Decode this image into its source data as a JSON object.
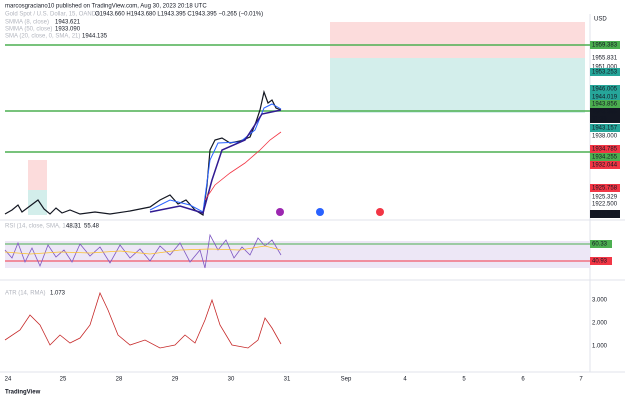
{
  "header": {
    "attribution": "marcosgraciano10 published on TradingView.com, Aug 30, 2023 20:18 UTC"
  },
  "legend": {
    "symbol": "Gold Spot / U.S. Dollar, 15, OANDA",
    "ohlc": "O1943.660 H1943.680 L1943.395 C1943.395 −0.265 (−0.01%)",
    "indicators": [
      {
        "name": "SMMA (8, close)",
        "value": "1943.621"
      },
      {
        "name": "SMMA (50, close)",
        "value": "1933.090"
      },
      {
        "name": "SMA (20, close, 0, SMA, 21)",
        "value": "1944.135"
      }
    ]
  },
  "price_axis": {
    "currency": "USD",
    "labels": [
      "1959.383",
      "1955.831",
      "1951.000",
      "1953.253",
      "1946.005",
      "1944.019",
      "1943.856",
      "1943.395",
      "11:30",
      "1943.157",
      "1938.000",
      "1934.785",
      "1934.255",
      "1932.044",
      "1925.758",
      "1925.329",
      "1922.500",
      "1918.614"
    ]
  },
  "rsi": {
    "title": "RSI (14, close, SMA, 14, 2)",
    "values": [
      "48.31",
      "55.48"
    ],
    "axis": [
      "60.33",
      "40.93"
    ]
  },
  "atr": {
    "title": "ATR (14, RMA)",
    "value": "1.073",
    "axis": [
      "3.000",
      "2.000",
      "1.000"
    ]
  },
  "time_axis": [
    "24",
    "25",
    "28",
    "29",
    "30",
    "31",
    "Sep",
    "4",
    "5",
    "6",
    "7"
  ],
  "footer": {
    "brand": "TradingView"
  }
}
